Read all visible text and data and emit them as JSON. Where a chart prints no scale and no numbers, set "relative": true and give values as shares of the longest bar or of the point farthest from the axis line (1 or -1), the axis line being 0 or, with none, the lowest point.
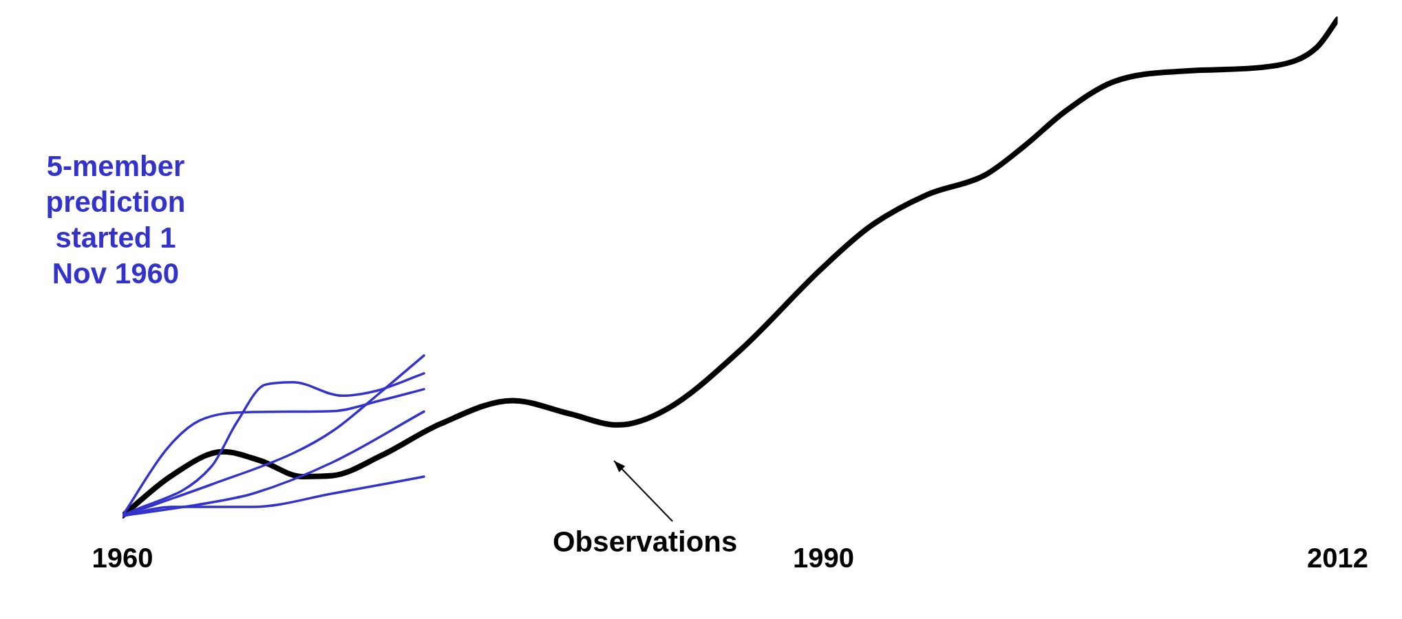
{
  "chart_data": {
    "type": "line",
    "relative": true,
    "xlim": [
      1960,
      2012
    ],
    "xticks": [
      1960,
      1990,
      2012
    ],
    "legend": false,
    "grid": false,
    "marker": "none",
    "annotations": [
      "5-member prediction started 1 Nov 1960",
      "Observations"
    ],
    "series": [
      {
        "color": "#000000",
        "x": [
          1960,
          1962.1,
          1964.3,
          1965.9,
          1967.7,
          1969,
          1971.1,
          1973.6,
          1976.7,
          1979.1,
          1981.2,
          1983.3,
          1986.4,
          1989.9,
          1992,
          1994.4,
          1996.9,
          1998.6,
          2000.3,
          2002.4,
          2005.6,
          2009.4,
          2011.1,
          2012
        ],
        "values": [
          0,
          0.081,
          0.129,
          0.111,
          0.079,
          0.081,
          0.122,
          0.185,
          0.232,
          0.206,
          0.183,
          0.215,
          0.332,
          0.497,
          0.583,
          0.646,
          0.686,
          0.745,
          0.813,
          0.874,
          0.896,
          0.907,
          0.943,
          1
        ]
      },
      {
        "color": "#3333cc",
        "x": [
          1960,
          1961.9,
          1963.3,
          1965.6,
          1969,
          1971.1,
          1972.9
        ],
        "values": [
          0,
          0.135,
          0.192,
          0.209,
          0.211,
          0.233,
          0.255
        ]
      },
      {
        "color": "#3333cc",
        "x": [
          1960,
          1963.8,
          1964.9,
          1966.1,
          1967.3,
          1969.4,
          1970.8,
          1972.9
        ],
        "values": [
          0,
          0.099,
          0.189,
          0.264,
          0.269,
          0.242,
          0.251,
          0.287
        ]
      },
      {
        "color": "#3333cc",
        "x": [
          1960,
          1963.8,
          1967.3,
          1969,
          1971.1,
          1972.9
        ],
        "values": [
          0,
          0.063,
          0.126,
          0.171,
          0.251,
          0.323
        ]
      },
      {
        "color": "#3333cc",
        "x": [
          1960,
          1963.8,
          1965.6,
          1969,
          1972.9
        ],
        "values": [
          0,
          0.027,
          0.045,
          0.108,
          0.21
        ]
      },
      {
        "color": "#3333cc",
        "x": [
          1960,
          1962.1,
          1965.6,
          1969,
          1972.9
        ],
        "values": [
          0,
          0.018,
          0.018,
          0.045,
          0.079
        ]
      }
    ]
  }
}
